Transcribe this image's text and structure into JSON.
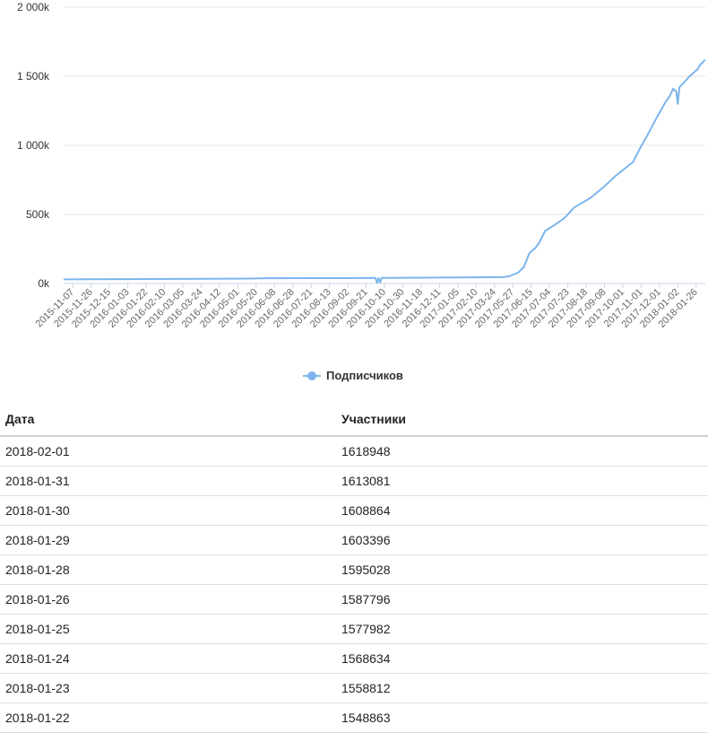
{
  "colors": {
    "series": "#7cb5ec",
    "grid": "#e6e6e6",
    "axis": "#ccd6eb"
  },
  "chart_data": {
    "type": "line",
    "title": "",
    "ylim": [
      0,
      2000000
    ],
    "xlim": [
      "2015-11-07",
      "2018-02-01"
    ],
    "grid": true,
    "legend_position": "bottom-center",
    "y_tick_values": [
      0,
      500000,
      1000000,
      1500000,
      2000000
    ],
    "y_tick_labels": [
      "0k",
      "500k",
      "1 000k",
      "1 500k",
      "2 000k"
    ],
    "x_tick_labels": [
      "2015-11-07",
      "2015-11-26",
      "2015-12-15",
      "2016-01-03",
      "2016-01-22",
      "2016-02-10",
      "2016-03-05",
      "2016-03-24",
      "2016-04-12",
      "2016-05-01",
      "2016-05-20",
      "2016-06-08",
      "2016-06-28",
      "2016-07-21",
      "2016-08-13",
      "2016-09-02",
      "2016-09-21",
      "2016-10-10",
      "2016-10-30",
      "2016-11-18",
      "2016-12-11",
      "2017-01-05",
      "2017-02-10",
      "2017-03-24",
      "2017-05-27",
      "2017-06-15",
      "2017-07-04",
      "2017-07-23",
      "2017-08-18",
      "2017-09-08",
      "2017-10-01",
      "2017-11-01",
      "2017-12-01",
      "2018-01-02",
      "2018-01-26"
    ],
    "series": [
      {
        "name": "Подписчиков",
        "points": [
          [
            "2015-11-07",
            30000
          ],
          [
            "2016-01-22",
            32000
          ],
          [
            "2016-05-01",
            34000
          ],
          [
            "2016-06-28",
            36000
          ],
          [
            "2016-07-21",
            38000
          ],
          [
            "2016-09-21",
            39000
          ],
          [
            "2016-11-18",
            39500
          ],
          [
            "2016-12-08",
            40000
          ],
          [
            "2016-12-10",
            5000
          ],
          [
            "2016-12-12",
            40000
          ],
          [
            "2016-12-14",
            8000
          ],
          [
            "2016-12-16",
            40000
          ],
          [
            "2017-02-10",
            42000
          ],
          [
            "2017-03-24",
            44000
          ],
          [
            "2017-05-20",
            46000
          ],
          [
            "2017-05-27",
            52000
          ],
          [
            "2017-06-08",
            80000
          ],
          [
            "2017-06-15",
            120000
          ],
          [
            "2017-06-22",
            220000
          ],
          [
            "2017-06-30",
            260000
          ],
          [
            "2017-07-05",
            300000
          ],
          [
            "2017-07-12",
            380000
          ],
          [
            "2017-07-23",
            420000
          ],
          [
            "2017-08-05",
            470000
          ],
          [
            "2017-08-18",
            550000
          ],
          [
            "2017-09-08",
            620000
          ],
          [
            "2017-09-25",
            700000
          ],
          [
            "2017-10-10",
            780000
          ],
          [
            "2017-11-01",
            880000
          ],
          [
            "2017-11-10",
            980000
          ],
          [
            "2017-11-20",
            1080000
          ],
          [
            "2017-12-01",
            1200000
          ],
          [
            "2017-12-12",
            1310000
          ],
          [
            "2017-12-18",
            1360000
          ],
          [
            "2017-12-22",
            1410000
          ],
          [
            "2017-12-26",
            1390000
          ],
          [
            "2017-12-28",
            1300000
          ],
          [
            "2017-12-30",
            1420000
          ],
          [
            "2018-01-04",
            1450000
          ],
          [
            "2018-01-12",
            1500000
          ],
          [
            "2018-01-20",
            1540000
          ],
          [
            "2018-01-22",
            1548863
          ],
          [
            "2018-01-23",
            1558812
          ],
          [
            "2018-01-24",
            1568634
          ],
          [
            "2018-01-25",
            1577982
          ],
          [
            "2018-01-26",
            1587796
          ],
          [
            "2018-01-28",
            1595028
          ],
          [
            "2018-01-29",
            1603396
          ],
          [
            "2018-01-30",
            1608864
          ],
          [
            "2018-01-31",
            1613081
          ],
          [
            "2018-02-01",
            1618948
          ]
        ]
      }
    ]
  },
  "legend": {
    "label": "Подписчиков"
  },
  "table": {
    "headers": [
      "Дата",
      "Участники"
    ],
    "rows": [
      [
        "2018-02-01",
        "1618948"
      ],
      [
        "2018-01-31",
        "1613081"
      ],
      [
        "2018-01-30",
        "1608864"
      ],
      [
        "2018-01-29",
        "1603396"
      ],
      [
        "2018-01-28",
        "1595028"
      ],
      [
        "2018-01-26",
        "1587796"
      ],
      [
        "2018-01-25",
        "1577982"
      ],
      [
        "2018-01-24",
        "1568634"
      ],
      [
        "2018-01-23",
        "1558812"
      ],
      [
        "2018-01-22",
        "1548863"
      ]
    ]
  }
}
